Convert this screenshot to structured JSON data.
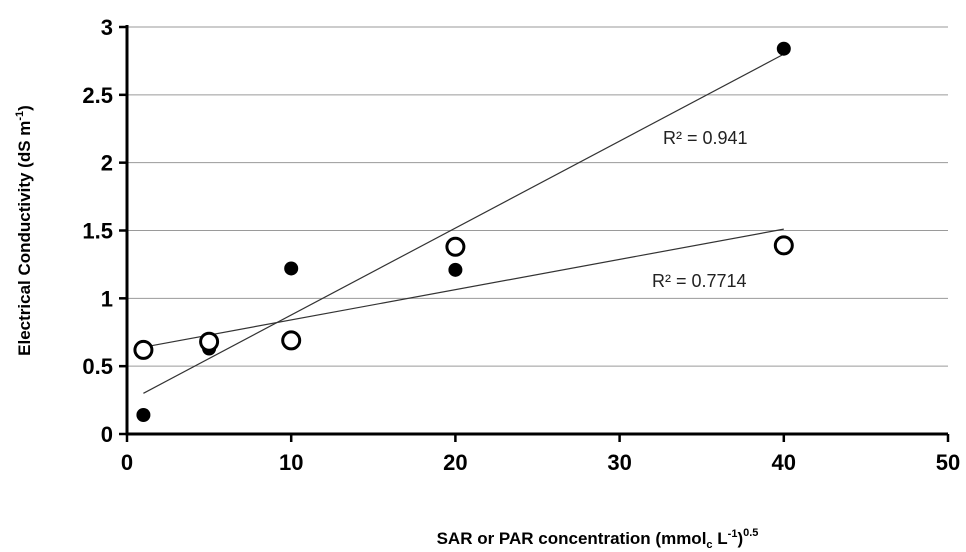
{
  "chart_data": {
    "type": "scatter",
    "xlabel": "SAR or PAR concentration (mmol",
    "xlabel_sub": "c",
    "xlabel_mid": " L",
    "xlabel_sup1": "-1",
    "xlabel_end": ")",
    "xlabel_sup2": "0.5",
    "ylabel": "Electrical Conductivity  (dS m",
    "ylabel_sup": "-1",
    "ylabel_end": ")",
    "xlim": [
      0,
      50
    ],
    "ylim": [
      0,
      3
    ],
    "x_ticks": [
      "0",
      "10",
      "20",
      "30",
      "40",
      "50"
    ],
    "y_ticks": [
      "0",
      "0.5",
      "1",
      "1.5",
      "2",
      "2.5",
      "3"
    ],
    "grid": true,
    "series": [
      {
        "marker": "filled-circle",
        "x": [
          1,
          5,
          10,
          20,
          40
        ],
        "y": [
          0.14,
          0.63,
          1.22,
          1.21,
          2.84
        ],
        "trendline": {
          "x": [
            1,
            40
          ],
          "y": [
            0.3,
            2.8
          ]
        },
        "r2_label": "R² = 0.941"
      },
      {
        "marker": "open-circle",
        "x": [
          1,
          5,
          10,
          20,
          40
        ],
        "y": [
          0.62,
          0.68,
          0.69,
          1.38,
          1.39
        ],
        "trendline": {
          "x": [
            1,
            40
          ],
          "y": [
            0.64,
            1.51
          ]
        },
        "r2_label": "R² = 0.7714"
      }
    ]
  }
}
